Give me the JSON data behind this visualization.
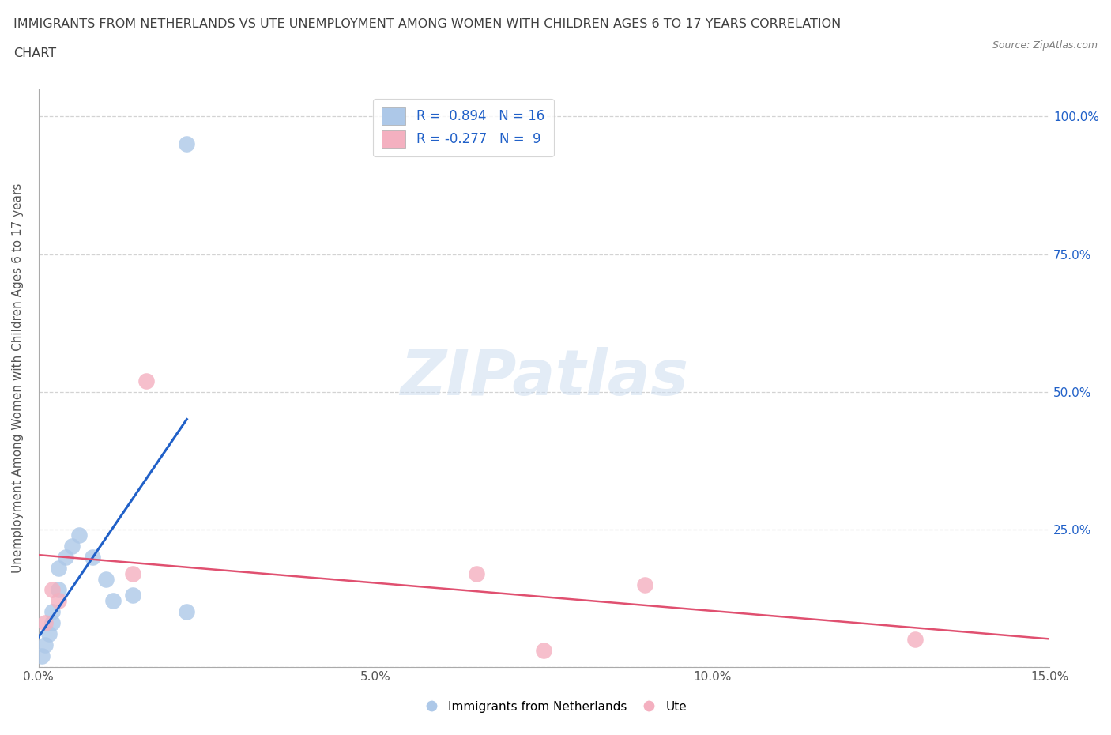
{
  "title_line1": "IMMIGRANTS FROM NETHERLANDS VS UTE UNEMPLOYMENT AMONG WOMEN WITH CHILDREN AGES 6 TO 17 YEARS CORRELATION",
  "title_line2": "CHART",
  "source": "Source: ZipAtlas.com",
  "ylabel": "Unemployment Among Women with Children Ages 6 to 17 years",
  "xlim": [
    0.0,
    0.15
  ],
  "ylim": [
    0.0,
    1.05
  ],
  "xtick_vals": [
    0.0,
    0.05,
    0.1,
    0.15
  ],
  "xticklabels": [
    "0.0%",
    "5.0%",
    "10.0%",
    "15.0%"
  ],
  "ytick_vals": [
    0.0,
    0.25,
    0.5,
    0.75,
    1.0
  ],
  "yticklabels_right": [
    "",
    "25.0%",
    "50.0%",
    "75.0%",
    "100.0%"
  ],
  "watermark": "ZIPatlas",
  "blue_color": "#adc8e8",
  "blue_line_color": "#2060c8",
  "pink_color": "#f4b0c0",
  "pink_line_color": "#e05070",
  "background_color": "#ffffff",
  "grid_color": "#c8c8c8",
  "title_color": "#404040",
  "blue_x": [
    0.0005,
    0.001,
    0.0015,
    0.002,
    0.002,
    0.003,
    0.003,
    0.004,
    0.005,
    0.006,
    0.008,
    0.01,
    0.011,
    0.014,
    0.022,
    0.022
  ],
  "blue_y": [
    0.02,
    0.04,
    0.06,
    0.08,
    0.1,
    0.14,
    0.18,
    0.2,
    0.22,
    0.24,
    0.2,
    0.16,
    0.12,
    0.13,
    0.1,
    0.95
  ],
  "pink_x": [
    0.001,
    0.002,
    0.003,
    0.014,
    0.016,
    0.065,
    0.075,
    0.09,
    0.13
  ],
  "pink_y": [
    0.08,
    0.14,
    0.12,
    0.17,
    0.52,
    0.17,
    0.03,
    0.15,
    0.05
  ]
}
